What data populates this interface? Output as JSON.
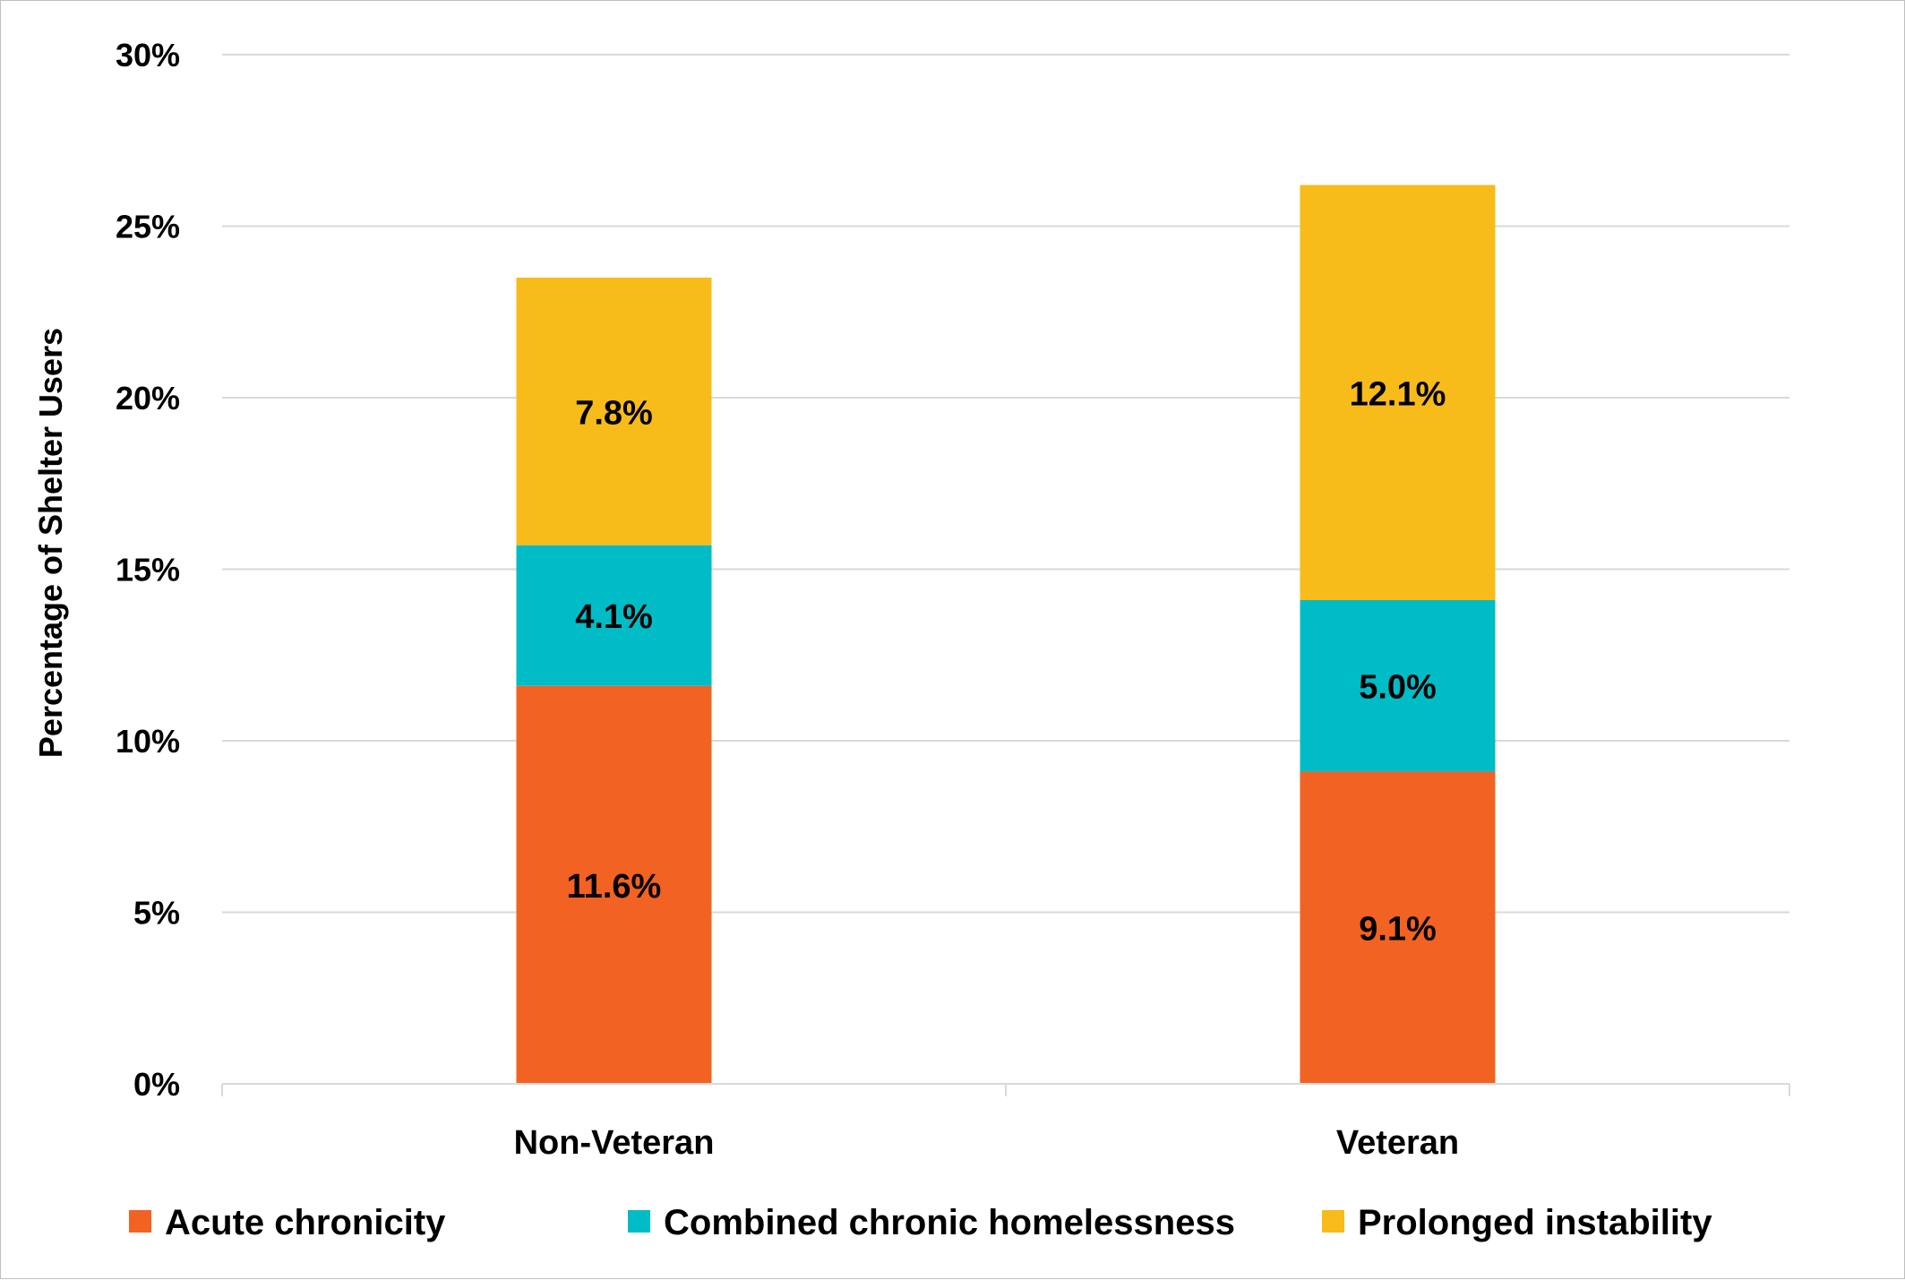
{
  "chart_data": {
    "type": "bar",
    "stacked": true,
    "title": "",
    "xlabel": "",
    "ylabel": "Percentage of Shelter Users",
    "categories": [
      "Non-Veteran",
      "Veteran"
    ],
    "series": [
      {
        "name": "Acute chronicity",
        "values": [
          11.6,
          9.1
        ],
        "labels": [
          "11.6%",
          "9.1%"
        ],
        "color": "#F26222"
      },
      {
        "name": "Combined chronic homelessness",
        "values": [
          4.1,
          5.0
        ],
        "labels": [
          "4.1%",
          "5.0%"
        ],
        "color": "#00BCC6"
      },
      {
        "name": "Prolonged instability",
        "values": [
          7.8,
          12.1
        ],
        "labels": [
          "7.8%",
          "12.1%"
        ],
        "color": "#F7BB1A"
      }
    ],
    "ylim": [
      0,
      30
    ],
    "yticks": [
      0,
      5,
      10,
      15,
      20,
      25,
      30
    ],
    "ytick_labels": [
      "0%",
      "5%",
      "10%",
      "15%",
      "20%",
      "25%",
      "30%"
    ],
    "grid": true,
    "grid_color": "#d9d9d9",
    "legend_position": "bottom"
  }
}
